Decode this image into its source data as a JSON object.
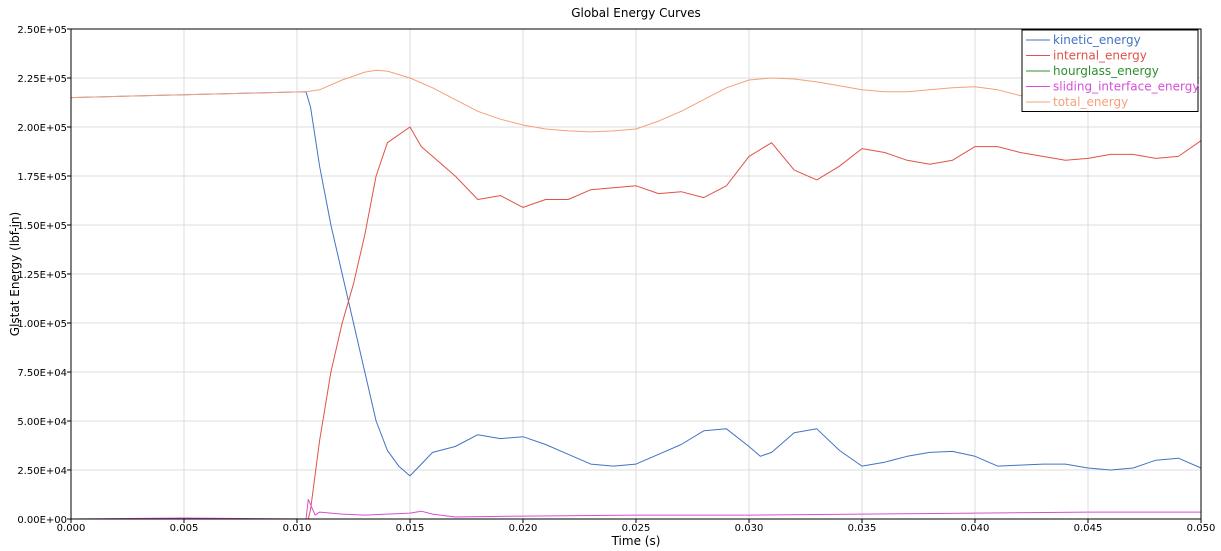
{
  "chart_data": {
    "type": "line",
    "title": "Global Energy Curves",
    "xlabel": "Time (s)",
    "ylabel": "Glstat Energy (lbf-in)",
    "xlim": [
      0,
      0.05
    ],
    "ylim": [
      0,
      250000
    ],
    "grid": true,
    "legend_position": "top-right",
    "x_ticks": [
      0,
      0.005,
      0.01,
      0.015,
      0.02,
      0.025,
      0.03,
      0.035,
      0.04,
      0.045,
      0.05
    ],
    "x_tick_labels": [
      "0.000",
      "0.005",
      "0.010",
      "0.015",
      "0.020",
      "0.025",
      "0.030",
      "0.035",
      "0.040",
      "0.045",
      "0.050"
    ],
    "y_ticks": [
      0,
      25000,
      50000,
      75000,
      100000,
      125000,
      150000,
      175000,
      200000,
      225000,
      250000
    ],
    "y_tick_labels": [
      "0.00E+00",
      "2.50E+04",
      "5.00E+04",
      "7.50E+04",
      "1.00E+05",
      "1.25E+05",
      "1.50E+05",
      "1.75E+05",
      "2.00E+05",
      "2.25E+05",
      "2.50E+05"
    ],
    "series": [
      {
        "name": "kinetic_energy",
        "color": "#4472c4",
        "points": [
          [
            0,
            215000
          ],
          [
            0.005,
            216500
          ],
          [
            0.0104,
            218000
          ],
          [
            0.0106,
            210000
          ],
          [
            0.011,
            180000
          ],
          [
            0.0115,
            150000
          ],
          [
            0.012,
            125000
          ],
          [
            0.0125,
            100000
          ],
          [
            0.013,
            75000
          ],
          [
            0.0135,
            50000
          ],
          [
            0.014,
            35000
          ],
          [
            0.0145,
            27000
          ],
          [
            0.015,
            22000
          ],
          [
            0.0155,
            28000
          ],
          [
            0.016,
            34000
          ],
          [
            0.017,
            37000
          ],
          [
            0.018,
            43000
          ],
          [
            0.019,
            41000
          ],
          [
            0.02,
            42000
          ],
          [
            0.021,
            38000
          ],
          [
            0.022,
            33000
          ],
          [
            0.023,
            28000
          ],
          [
            0.024,
            27000
          ],
          [
            0.025,
            28000
          ],
          [
            0.026,
            33000
          ],
          [
            0.027,
            38000
          ],
          [
            0.028,
            45000
          ],
          [
            0.029,
            46000
          ],
          [
            0.03,
            37000
          ],
          [
            0.0305,
            32000
          ],
          [
            0.031,
            34000
          ],
          [
            0.032,
            44000
          ],
          [
            0.033,
            46000
          ],
          [
            0.034,
            35000
          ],
          [
            0.035,
            27000
          ],
          [
            0.036,
            29000
          ],
          [
            0.037,
            32000
          ],
          [
            0.038,
            34000
          ],
          [
            0.039,
            34500
          ],
          [
            0.04,
            32000
          ],
          [
            0.041,
            27000
          ],
          [
            0.042,
            27500
          ],
          [
            0.043,
            28000
          ],
          [
            0.044,
            28000
          ],
          [
            0.045,
            26000
          ],
          [
            0.046,
            25000
          ],
          [
            0.047,
            26000
          ],
          [
            0.048,
            30000
          ],
          [
            0.049,
            31000
          ],
          [
            0.05,
            26000
          ]
        ]
      },
      {
        "name": "internal_energy",
        "color": "#e0524a",
        "points": [
          [
            0,
            0
          ],
          [
            0.0105,
            0
          ],
          [
            0.0106,
            5000
          ],
          [
            0.011,
            40000
          ],
          [
            0.0115,
            75000
          ],
          [
            0.012,
            100000
          ],
          [
            0.0125,
            120000
          ],
          [
            0.013,
            145000
          ],
          [
            0.0135,
            175000
          ],
          [
            0.014,
            192000
          ],
          [
            0.015,
            200000
          ],
          [
            0.0155,
            190000
          ],
          [
            0.016,
            185000
          ],
          [
            0.017,
            175000
          ],
          [
            0.018,
            163000
          ],
          [
            0.019,
            165000
          ],
          [
            0.02,
            159000
          ],
          [
            0.021,
            163000
          ],
          [
            0.022,
            163000
          ],
          [
            0.023,
            168000
          ],
          [
            0.024,
            169000
          ],
          [
            0.025,
            170000
          ],
          [
            0.026,
            166000
          ],
          [
            0.027,
            167000
          ],
          [
            0.028,
            164000
          ],
          [
            0.029,
            170000
          ],
          [
            0.03,
            185000
          ],
          [
            0.031,
            192000
          ],
          [
            0.032,
            178000
          ],
          [
            0.033,
            173000
          ],
          [
            0.034,
            180000
          ],
          [
            0.035,
            189000
          ],
          [
            0.036,
            187000
          ],
          [
            0.037,
            183000
          ],
          [
            0.038,
            181000
          ],
          [
            0.039,
            183000
          ],
          [
            0.04,
            190000
          ],
          [
            0.041,
            190000
          ],
          [
            0.042,
            187000
          ],
          [
            0.043,
            185000
          ],
          [
            0.044,
            183000
          ],
          [
            0.045,
            184000
          ],
          [
            0.046,
            186000
          ],
          [
            0.047,
            186000
          ],
          [
            0.048,
            184000
          ],
          [
            0.049,
            185000
          ],
          [
            0.05,
            193000
          ]
        ]
      },
      {
        "name": "hourglass_energy",
        "color": "#2f8f2f",
        "points": [
          [
            0,
            0
          ],
          [
            0.05,
            0
          ]
        ]
      },
      {
        "name": "sliding_interface_energy",
        "color": "#d64fd6",
        "points": [
          [
            0,
            0
          ],
          [
            0.005,
            500
          ],
          [
            0.0104,
            0
          ],
          [
            0.0105,
            10000
          ],
          [
            0.0108,
            2000
          ],
          [
            0.011,
            3500
          ],
          [
            0.012,
            2500
          ],
          [
            0.013,
            2000
          ],
          [
            0.014,
            2500
          ],
          [
            0.015,
            3000
          ],
          [
            0.0155,
            4000
          ],
          [
            0.016,
            2500
          ],
          [
            0.017,
            1000
          ],
          [
            0.02,
            1500
          ],
          [
            0.025,
            2000
          ],
          [
            0.03,
            2000
          ],
          [
            0.035,
            2500
          ],
          [
            0.04,
            3000
          ],
          [
            0.045,
            3500
          ],
          [
            0.05,
            3500
          ]
        ]
      },
      {
        "name": "total_energy",
        "color": "#f4a07c",
        "points": [
          [
            0,
            215000
          ],
          [
            0.005,
            216500
          ],
          [
            0.0104,
            218000
          ],
          [
            0.011,
            219000
          ],
          [
            0.012,
            224000
          ],
          [
            0.013,
            228000
          ],
          [
            0.0135,
            229000
          ],
          [
            0.014,
            228500
          ],
          [
            0.015,
            225000
          ],
          [
            0.016,
            220000
          ],
          [
            0.017,
            214000
          ],
          [
            0.018,
            208000
          ],
          [
            0.019,
            204000
          ],
          [
            0.02,
            201000
          ],
          [
            0.021,
            199000
          ],
          [
            0.022,
            198000
          ],
          [
            0.023,
            197500
          ],
          [
            0.024,
            198000
          ],
          [
            0.025,
            199000
          ],
          [
            0.026,
            203000
          ],
          [
            0.027,
            208000
          ],
          [
            0.028,
            214000
          ],
          [
            0.029,
            220000
          ],
          [
            0.03,
            224000
          ],
          [
            0.031,
            225000
          ],
          [
            0.032,
            224500
          ],
          [
            0.033,
            223000
          ],
          [
            0.034,
            221000
          ],
          [
            0.035,
            219000
          ],
          [
            0.036,
            218000
          ],
          [
            0.037,
            218000
          ],
          [
            0.038,
            219000
          ],
          [
            0.039,
            220000
          ],
          [
            0.04,
            220500
          ],
          [
            0.041,
            219000
          ],
          [
            0.042,
            216000
          ],
          [
            0.043,
            215000
          ]
        ]
      }
    ]
  }
}
